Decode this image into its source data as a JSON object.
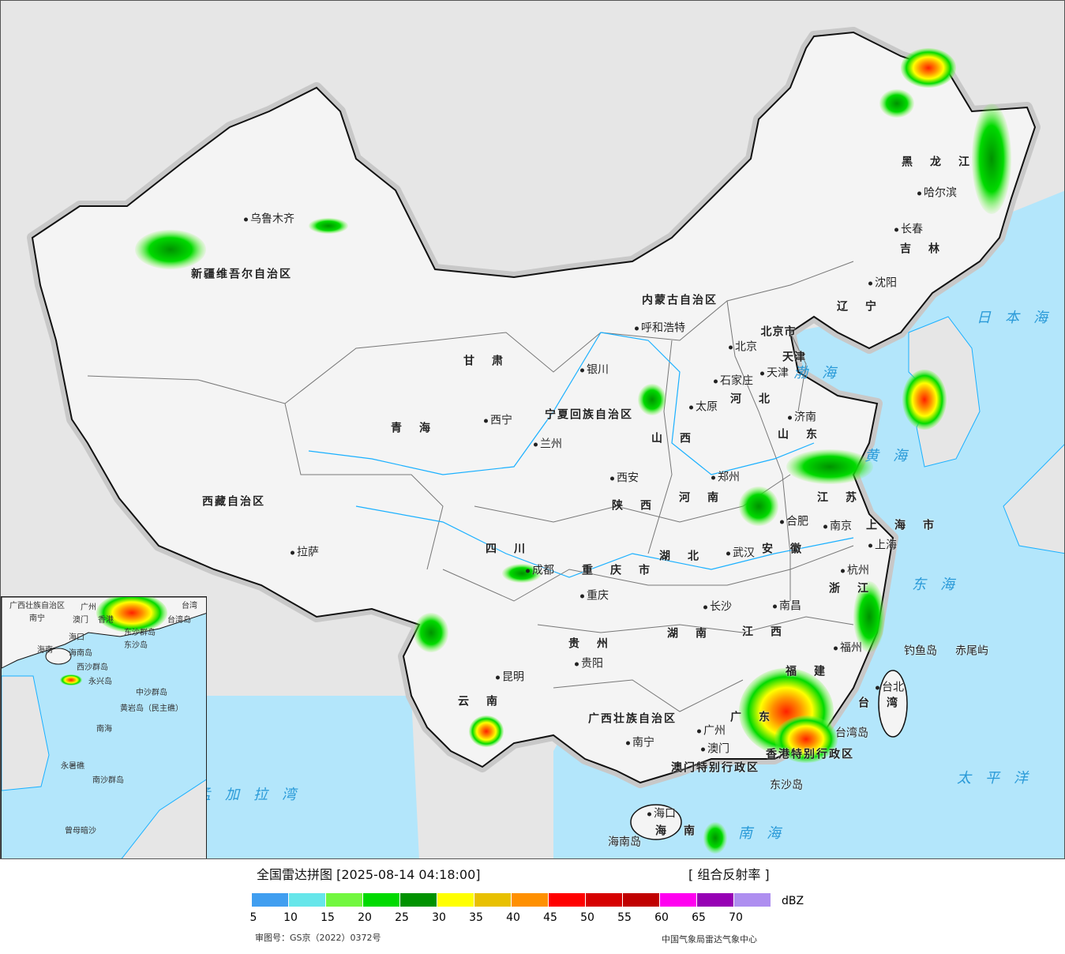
{
  "map": {
    "provinces": [
      "新疆维吾尔自治区",
      "西藏自治区",
      "青海",
      "甘肃",
      "内蒙古自治区",
      "黑龙江",
      "吉林",
      "辽宁",
      "河北",
      "山西",
      "陕西",
      "四川",
      "云南",
      "贵州",
      "广西壮族自治区",
      "湖南",
      "湖北",
      "河南",
      "山东",
      "江苏",
      "安徽",
      "浙江",
      "江西",
      "福建",
      "广东",
      "海南",
      "宁夏回族自治区",
      "重庆市",
      "上海市",
      "天津",
      "北京市",
      "台湾",
      "香港特别行政区",
      "澳门特别行政区"
    ],
    "cities": [
      "乌鲁木齐",
      "拉萨",
      "西宁",
      "兰州",
      "银川",
      "呼和浩特",
      "北京",
      "天津",
      "石家庄",
      "太原",
      "济南",
      "郑州",
      "西安",
      "成都",
      "重庆",
      "昆明",
      "贵阳",
      "南宁",
      "长沙",
      "武汉",
      "合肥",
      "南京",
      "上海",
      "杭州",
      "南昌",
      "福州",
      "台北",
      "广州",
      "澳门",
      "海口",
      "哈尔滨",
      "长春",
      "沈阳"
    ],
    "seas": [
      "渤海",
      "黄海",
      "东海",
      "南海",
      "日本海",
      "太平洋",
      "孟加拉湾"
    ],
    "islands": [
      "钓鱼岛",
      "赤尾屿",
      "东沙岛",
      "台湾岛",
      "海南岛"
    ],
    "inset_labels": [
      "广西壮族自治区",
      "南宁",
      "广州",
      "澳门",
      "香港",
      "台湾",
      "台湾岛",
      "东沙群岛",
      "东沙岛",
      "海口",
      "海南",
      "海南岛",
      "西沙群岛",
      "永兴岛",
      "中沙群岛",
      "黄岩岛（民主礁）",
      "南海",
      "永暑礁",
      "南沙群岛",
      "曾母暗沙"
    ]
  },
  "legend": {
    "title": "全国雷达拼图 [2025-08-14 04:18:00]",
    "product": "[ 组合反射率 ]",
    "unit": "dBZ",
    "ticks": [
      "5",
      "10",
      "15",
      "20",
      "25",
      "30",
      "35",
      "40",
      "45",
      "50",
      "55",
      "60",
      "65",
      "70"
    ],
    "colors": [
      "#409ef0",
      "#66e6ea",
      "#72f73f",
      "#00da00",
      "#009200",
      "#ffff00",
      "#e8c000",
      "#ff9000",
      "#ff0000",
      "#d60000",
      "#c00000",
      "#ff00f0",
      "#9600b4",
      "#ae8ef0"
    ],
    "approval": "审图号：GS京（2022）0372号",
    "organization": "中国气象局雷达气象中心"
  }
}
